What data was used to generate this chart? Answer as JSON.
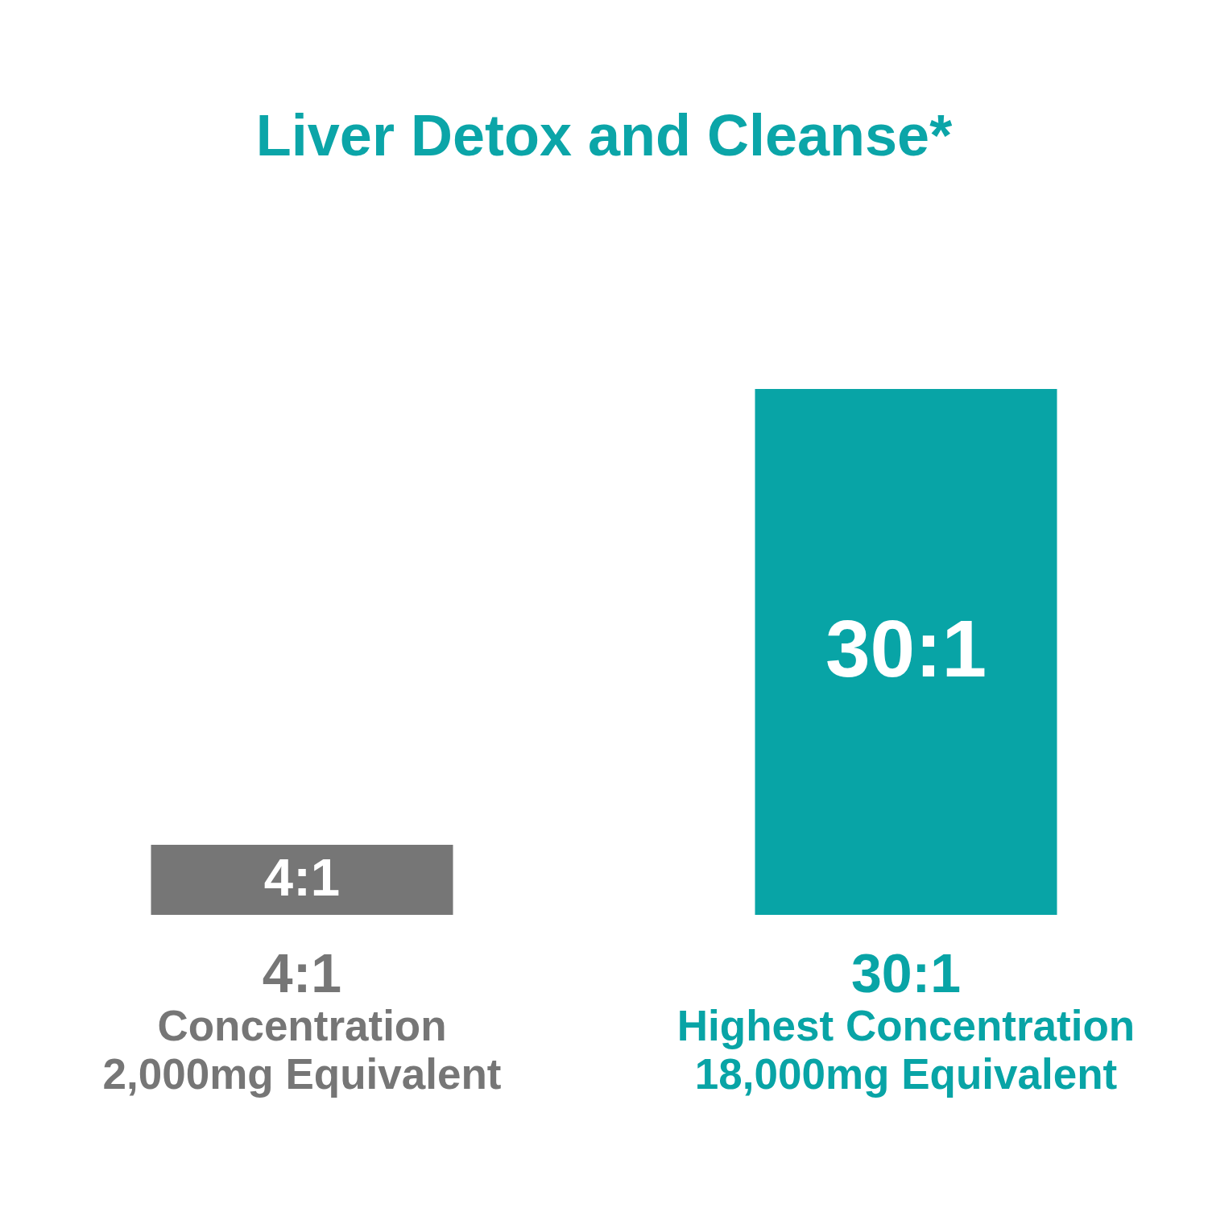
{
  "chart_data": {
    "type": "bar",
    "title": "Liver Detox and Cleanse*",
    "categories": [
      "4:1\nConcentration\n2,000mg Equivalent",
      "30:1\nHighest Concentration\n18,000mg Equivalent"
    ],
    "values": [
      4,
      30
    ],
    "colors": [
      "#767676",
      "#08a4a6"
    ],
    "tick_labels": "x",
    "value_labels": [
      "4:1",
      "30:1"
    ]
  }
}
